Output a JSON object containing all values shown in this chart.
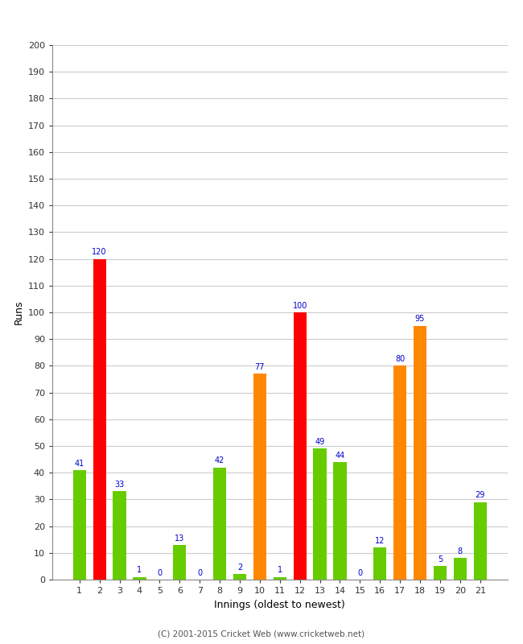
{
  "xlabel": "Innings (oldest to newest)",
  "ylabel": "Runs",
  "ylim": [
    0,
    200
  ],
  "yticks": [
    0,
    10,
    20,
    30,
    40,
    50,
    60,
    70,
    80,
    90,
    100,
    110,
    120,
    130,
    140,
    150,
    160,
    170,
    180,
    190,
    200
  ],
  "categories": [
    1,
    2,
    3,
    4,
    5,
    6,
    7,
    8,
    9,
    10,
    11,
    12,
    13,
    14,
    15,
    16,
    17,
    18,
    19,
    20,
    21
  ],
  "values": [
    41,
    120,
    33,
    1,
    0,
    13,
    0,
    42,
    2,
    77,
    1,
    100,
    49,
    44,
    0,
    12,
    80,
    95,
    5,
    8,
    29
  ],
  "colors": [
    "#66cc00",
    "#ff0000",
    "#66cc00",
    "#66cc00",
    "#66cc00",
    "#66cc00",
    "#66cc00",
    "#66cc00",
    "#66cc00",
    "#ff8800",
    "#66cc00",
    "#ff0000",
    "#66cc00",
    "#66cc00",
    "#66cc00",
    "#66cc00",
    "#ff8800",
    "#ff8800",
    "#66cc00",
    "#66cc00",
    "#66cc00"
  ],
  "label_color": "#0000cc",
  "background_color": "#ffffff",
  "grid_color": "#cccccc",
  "footer": "(C) 2001-2015 Cricket Web (www.cricketweb.net)",
  "bar_width": 0.65,
  "label_fontsize": 7,
  "tick_fontsize": 8,
  "axis_label_fontsize": 9,
  "footer_fontsize": 7.5,
  "footer_color": "#555555"
}
